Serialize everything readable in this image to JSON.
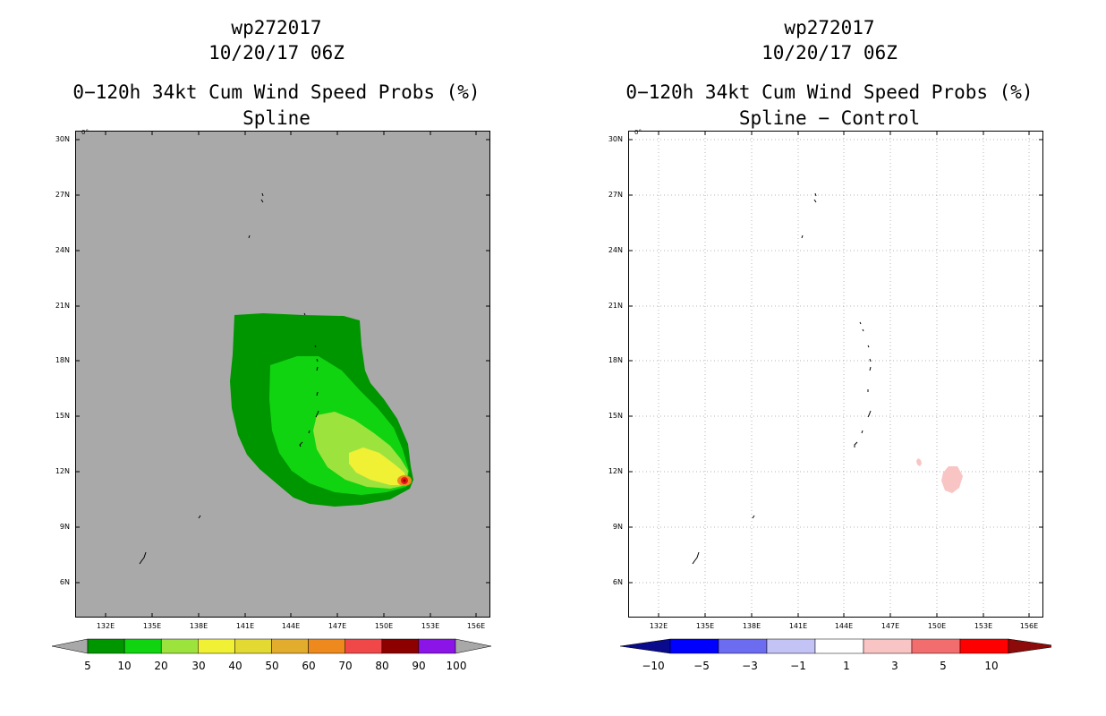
{
  "colors": {
    "background": "#ffffff",
    "land_gray": "#a9a9a9",
    "prob_5": "#009600",
    "prob_10": "#11d411",
    "prob_20": "#9de33e",
    "prob_30": "#f0f035",
    "prob_max": "#e61919"
  },
  "left_panel": {
    "storm_id": "wp272017",
    "datetime": "10/20/17 06Z",
    "product": "0−120h 34kt Cum Wind Speed Probs (%)",
    "subtitle": "Spline",
    "degree_mark": "0°",
    "lat_labels": [
      "30N",
      "27N",
      "24N",
      "21N",
      "18N",
      "15N",
      "12N",
      "9N",
      "6N"
    ],
    "lon_labels": [
      "132E",
      "135E",
      "138E",
      "141E",
      "144E",
      "147E",
      "150E",
      "153E",
      "156E"
    ],
    "colorbar": {
      "colors": [
        "#009600",
        "#11d411",
        "#9de33e",
        "#f0f035",
        "#e2d932",
        "#e2ac2d",
        "#ee8a1d",
        "#f04848",
        "#8c0000",
        "#8a15e6"
      ],
      "under_color": "#a8a8a8",
      "over_color": "#a8a8a8",
      "labels": [
        "5",
        "10",
        "20",
        "30",
        "40",
        "50",
        "60",
        "70",
        "80",
        "90",
        "100"
      ]
    }
  },
  "right_panel": {
    "storm_id": "wp272017",
    "datetime": "10/20/17 06Z",
    "product": "0−120h 34kt Cum Wind Speed Probs (%)",
    "subtitle": "Spline − Control",
    "degree_mark": "0°",
    "lat_labels": [
      "30N",
      "27N",
      "24N",
      "21N",
      "18N",
      "15N",
      "12N",
      "9N",
      "6N"
    ],
    "lon_labels": [
      "132E",
      "135E",
      "138E",
      "141E",
      "144E",
      "147E",
      "150E",
      "153E",
      "156E"
    ],
    "colorbar": {
      "colors": [
        "#0000ff",
        "#6c6cf0",
        "#c3c3f5",
        "#ffffff",
        "#f9c4c4",
        "#f26d6d",
        "#ff0000"
      ],
      "under_color": "#0a0a8c",
      "over_color": "#8c0a0a",
      "labels": [
        "−10",
        "−5",
        "−3",
        "−1",
        "1",
        "3",
        "5",
        "10"
      ]
    }
  },
  "chart_data": [
    {
      "type": "map",
      "title": "wp272017 10/20/17 06Z 0−120h 34kt Cum Wind Speed Probs (%) Spline",
      "lon_range": [
        130,
        157
      ],
      "lat_range": [
        3.5,
        30.5
      ],
      "peak_probability_pct": 100,
      "peak_location": {
        "lon": 152.3,
        "lat": 11.5
      },
      "contour_levels": [
        5,
        10,
        20,
        30,
        40,
        50,
        60,
        70,
        80,
        90,
        100
      ]
    },
    {
      "type": "map",
      "title": "wp272017 10/20/17 06Z 0−120h 34kt Cum Wind Speed Probs (%) Spline − Control",
      "lon_range": [
        130,
        157
      ],
      "lat_range": [
        3.5,
        30.5
      ],
      "positive_regions": [
        {
          "lon": 149.2,
          "lat": 12.5,
          "value_range": [
            1,
            3
          ]
        },
        {
          "lon": 151.3,
          "lat": 11.5,
          "value_range": [
            1,
            3
          ]
        }
      ],
      "contour_levels": [
        -10,
        -5,
        -3,
        -1,
        1,
        3,
        5,
        10
      ]
    }
  ]
}
